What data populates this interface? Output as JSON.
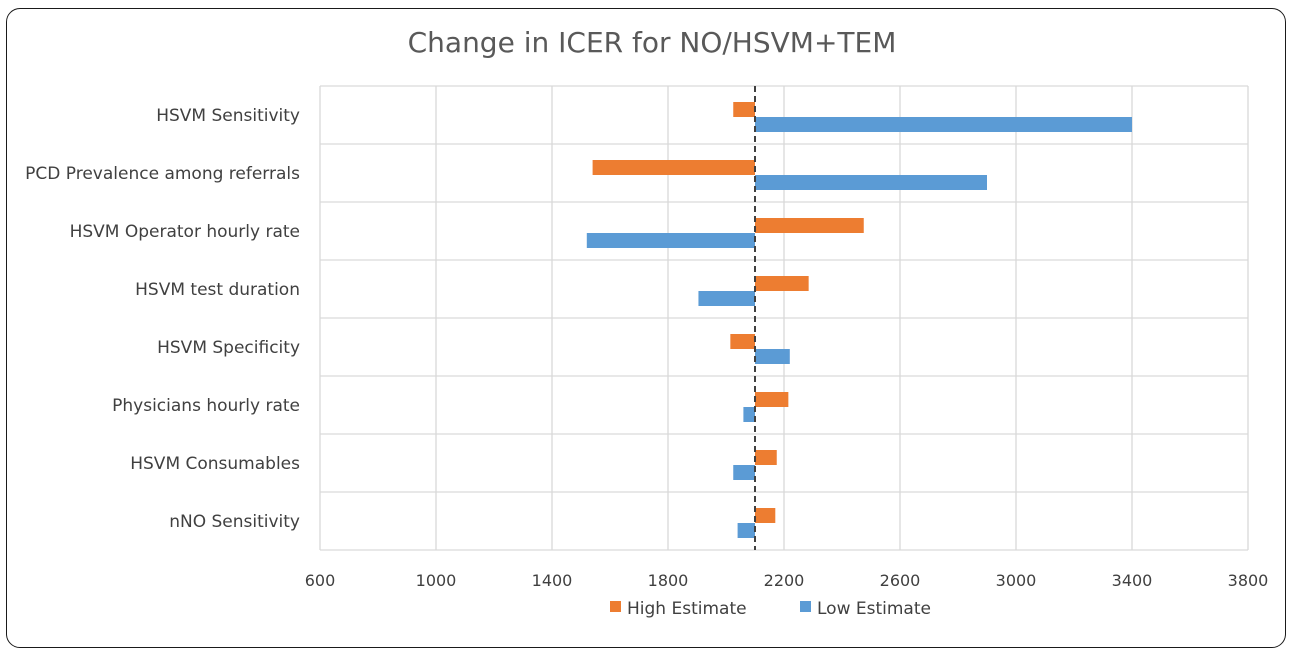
{
  "chart_data": {
    "type": "bar",
    "orientation": "horizontal",
    "title": "Change in ICER for NO/HSVM+TEM",
    "baseline": 2100,
    "categories": [
      "HSVM Sensitivity",
      "PCD Prevalence among referrals",
      "HSVM Operator hourly rate",
      "HSVM test duration",
      "HSVM Specificity",
      "Physicians hourly rate",
      "HSVM Consumables",
      "nNO Sensitivity"
    ],
    "series": [
      {
        "name": "High Estimate",
        "color": "#ED7D31",
        "values": [
          2025,
          1540,
          2475,
          2285,
          2015,
          2215,
          2175,
          2170
        ]
      },
      {
        "name": "Low Estimate",
        "color": "#5B9BD5",
        "values": [
          3400,
          2900,
          1520,
          1905,
          2220,
          2060,
          2025,
          2040
        ]
      }
    ],
    "xticks": [
      600,
      1000,
      1400,
      1800,
      2200,
      2600,
      3000,
      3400,
      3800
    ],
    "xlim": [
      600,
      3800
    ],
    "grid": true,
    "legend": "bottom"
  }
}
